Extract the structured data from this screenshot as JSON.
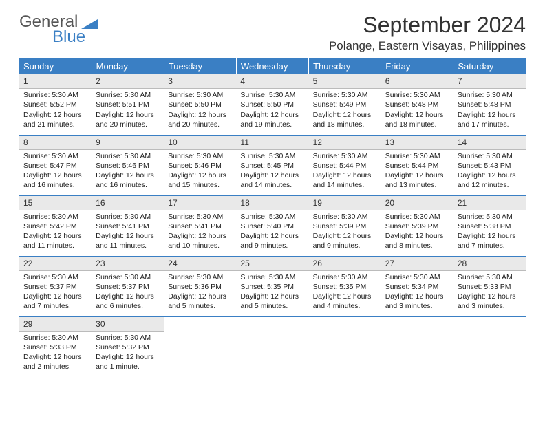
{
  "logo": {
    "primary": "General",
    "secondary": "Blue"
  },
  "title": "September 2024",
  "location": "Polange, Eastern Visayas, Philippines",
  "colors": {
    "header_bg": "#3a7fc4",
    "daynum_bg": "#e9e9e9",
    "rule": "#3a7fc4"
  },
  "day_headers": [
    "Sunday",
    "Monday",
    "Tuesday",
    "Wednesday",
    "Thursday",
    "Friday",
    "Saturday"
  ],
  "weeks": [
    [
      {
        "n": "1",
        "sr": "5:30 AM",
        "ss": "5:52 PM",
        "dl": "12 hours and 21 minutes."
      },
      {
        "n": "2",
        "sr": "5:30 AM",
        "ss": "5:51 PM",
        "dl": "12 hours and 20 minutes."
      },
      {
        "n": "3",
        "sr": "5:30 AM",
        "ss": "5:50 PM",
        "dl": "12 hours and 20 minutes."
      },
      {
        "n": "4",
        "sr": "5:30 AM",
        "ss": "5:50 PM",
        "dl": "12 hours and 19 minutes."
      },
      {
        "n": "5",
        "sr": "5:30 AM",
        "ss": "5:49 PM",
        "dl": "12 hours and 18 minutes."
      },
      {
        "n": "6",
        "sr": "5:30 AM",
        "ss": "5:48 PM",
        "dl": "12 hours and 18 minutes."
      },
      {
        "n": "7",
        "sr": "5:30 AM",
        "ss": "5:48 PM",
        "dl": "12 hours and 17 minutes."
      }
    ],
    [
      {
        "n": "8",
        "sr": "5:30 AM",
        "ss": "5:47 PM",
        "dl": "12 hours and 16 minutes."
      },
      {
        "n": "9",
        "sr": "5:30 AM",
        "ss": "5:46 PM",
        "dl": "12 hours and 16 minutes."
      },
      {
        "n": "10",
        "sr": "5:30 AM",
        "ss": "5:46 PM",
        "dl": "12 hours and 15 minutes."
      },
      {
        "n": "11",
        "sr": "5:30 AM",
        "ss": "5:45 PM",
        "dl": "12 hours and 14 minutes."
      },
      {
        "n": "12",
        "sr": "5:30 AM",
        "ss": "5:44 PM",
        "dl": "12 hours and 14 minutes."
      },
      {
        "n": "13",
        "sr": "5:30 AM",
        "ss": "5:44 PM",
        "dl": "12 hours and 13 minutes."
      },
      {
        "n": "14",
        "sr": "5:30 AM",
        "ss": "5:43 PM",
        "dl": "12 hours and 12 minutes."
      }
    ],
    [
      {
        "n": "15",
        "sr": "5:30 AM",
        "ss": "5:42 PM",
        "dl": "12 hours and 11 minutes."
      },
      {
        "n": "16",
        "sr": "5:30 AM",
        "ss": "5:41 PM",
        "dl": "12 hours and 11 minutes."
      },
      {
        "n": "17",
        "sr": "5:30 AM",
        "ss": "5:41 PM",
        "dl": "12 hours and 10 minutes."
      },
      {
        "n": "18",
        "sr": "5:30 AM",
        "ss": "5:40 PM",
        "dl": "12 hours and 9 minutes."
      },
      {
        "n": "19",
        "sr": "5:30 AM",
        "ss": "5:39 PM",
        "dl": "12 hours and 9 minutes."
      },
      {
        "n": "20",
        "sr": "5:30 AM",
        "ss": "5:39 PM",
        "dl": "12 hours and 8 minutes."
      },
      {
        "n": "21",
        "sr": "5:30 AM",
        "ss": "5:38 PM",
        "dl": "12 hours and 7 minutes."
      }
    ],
    [
      {
        "n": "22",
        "sr": "5:30 AM",
        "ss": "5:37 PM",
        "dl": "12 hours and 7 minutes."
      },
      {
        "n": "23",
        "sr": "5:30 AM",
        "ss": "5:37 PM",
        "dl": "12 hours and 6 minutes."
      },
      {
        "n": "24",
        "sr": "5:30 AM",
        "ss": "5:36 PM",
        "dl": "12 hours and 5 minutes."
      },
      {
        "n": "25",
        "sr": "5:30 AM",
        "ss": "5:35 PM",
        "dl": "12 hours and 5 minutes."
      },
      {
        "n": "26",
        "sr": "5:30 AM",
        "ss": "5:35 PM",
        "dl": "12 hours and 4 minutes."
      },
      {
        "n": "27",
        "sr": "5:30 AM",
        "ss": "5:34 PM",
        "dl": "12 hours and 3 minutes."
      },
      {
        "n": "28",
        "sr": "5:30 AM",
        "ss": "5:33 PM",
        "dl": "12 hours and 3 minutes."
      }
    ],
    [
      {
        "n": "29",
        "sr": "5:30 AM",
        "ss": "5:33 PM",
        "dl": "12 hours and 2 minutes."
      },
      {
        "n": "30",
        "sr": "5:30 AM",
        "ss": "5:32 PM",
        "dl": "12 hours and 1 minute."
      },
      null,
      null,
      null,
      null,
      null
    ]
  ],
  "labels": {
    "sunrise": "Sunrise:",
    "sunset": "Sunset:",
    "daylight": "Daylight:"
  }
}
